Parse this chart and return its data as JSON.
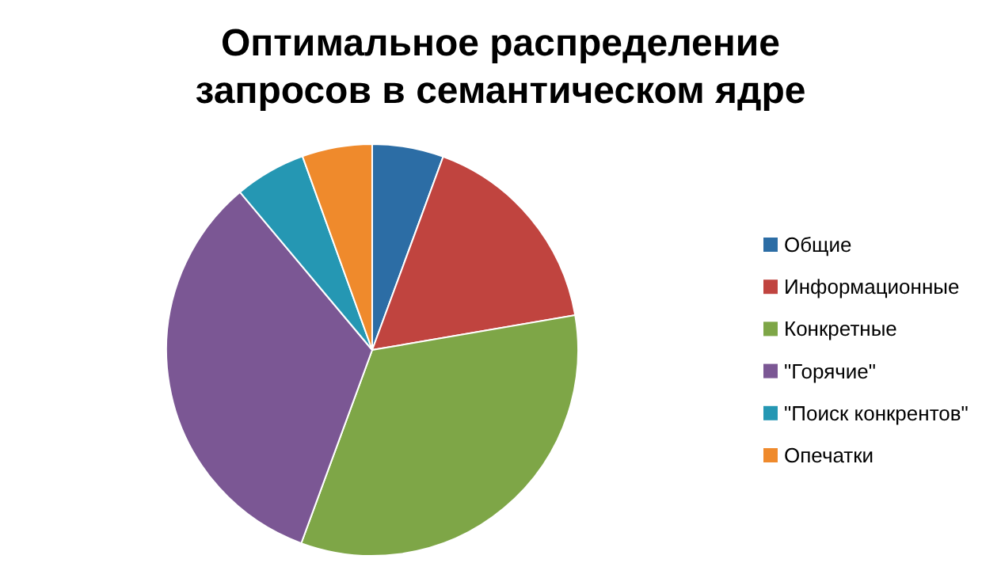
{
  "chart_data": {
    "type": "pie",
    "title": "Оптимальное распределение запросов в семантическом ядре",
    "categories": [
      "Общие",
      "Информационные",
      "Конкретные",
      "\"Горячие\"",
      "\"Поиск конкрентов\"",
      "Опечатки"
    ],
    "values": [
      5.6,
      16.7,
      33.3,
      33.3,
      5.6,
      5.5
    ],
    "colors": [
      "#2c6da5",
      "#c0443f",
      "#7ea647",
      "#7b5794",
      "#2597b3",
      "#ef8a2c"
    ],
    "legend": "right"
  }
}
